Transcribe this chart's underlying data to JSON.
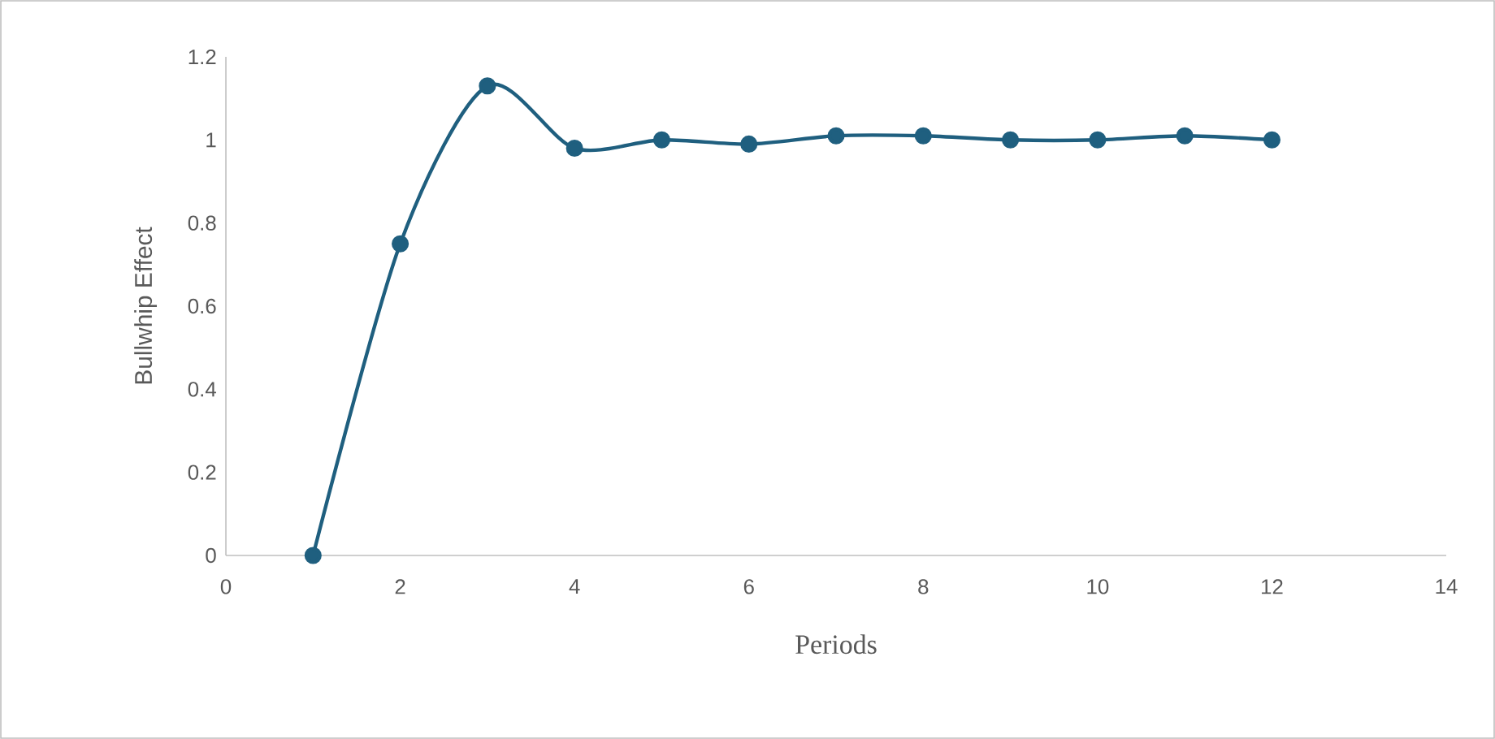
{
  "chart_data": {
    "type": "line",
    "xlabel": "Periods",
    "ylabel": "Bullwhip Effect",
    "x": [
      1,
      2,
      3,
      4,
      5,
      6,
      7,
      8,
      9,
      10,
      11,
      12
    ],
    "series": [
      {
        "color": "#1f5f7f",
        "values": [
          0,
          0.75,
          1.13,
          0.98,
          1.0,
          0.99,
          1.01,
          1.01,
          1.0,
          1.0,
          1.01,
          1.0
        ]
      }
    ],
    "xlim": [
      0,
      14
    ],
    "xticks": [
      0,
      2,
      4,
      6,
      8,
      10,
      12,
      14
    ],
    "ylim": [
      0,
      1.2
    ],
    "yticks": [
      0,
      0.2,
      0.4,
      0.6,
      0.8,
      1,
      1.2
    ],
    "grid": false,
    "marker": "circle",
    "line_style": "solid"
  }
}
